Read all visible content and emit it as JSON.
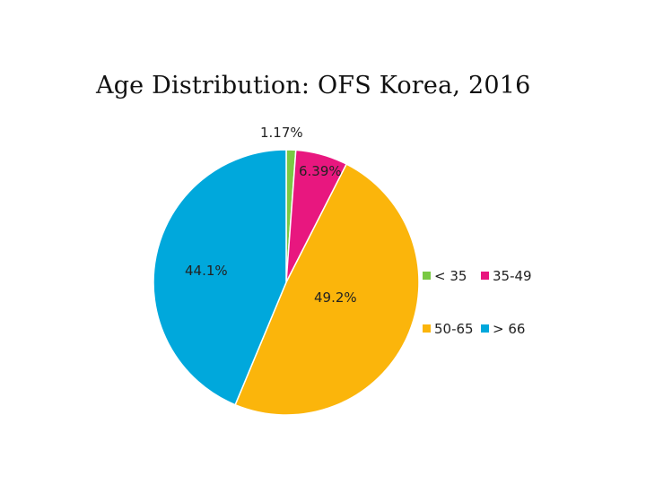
{
  "chart_data": {
    "type": "pie",
    "title": "Age Distribution: OFS Korea, 2016",
    "slices": [
      {
        "label": "< 35",
        "value": 1.17,
        "display": "1.17%",
        "color": "#7ac943"
      },
      {
        "label": "35-49",
        "value": 6.39,
        "display": "6.39%",
        "color": "#e8177f"
      },
      {
        "label": "50-65",
        "value": 49.2,
        "display": "49.2%",
        "color": "#fbb50b"
      },
      {
        "label": "> 66",
        "value": 44.1,
        "display": "44.1%",
        "color": "#00a8dc"
      }
    ],
    "legend_position": "right"
  }
}
